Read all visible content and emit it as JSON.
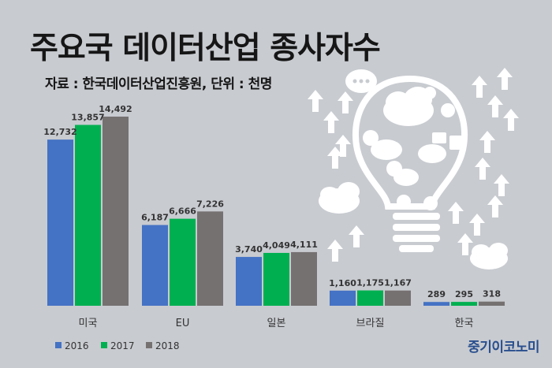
{
  "title": "주요국 데이터산업 종사자수",
  "subtitle": "자료 : 한국데이터산업진흥원, 단위 : 천명",
  "brand": "중기이코노미",
  "colors": {
    "background": "#c8cbd0",
    "s2016": "#4472c4",
    "s2017": "#00b050",
    "s2018": "#767171"
  },
  "chart_data": {
    "type": "bar",
    "title": "주요국 데이터산업 종사자수",
    "unit": "천명",
    "categories": [
      "미국",
      "EU",
      "일본",
      "브라질",
      "한국"
    ],
    "series": [
      {
        "name": "2016",
        "values": [
          12732,
          6187,
          3740,
          1160,
          289
        ]
      },
      {
        "name": "2017",
        "values": [
          13857,
          6666,
          4049,
          1175,
          295
        ]
      },
      {
        "name": "2018",
        "values": [
          14492,
          7226,
          4111,
          1167,
          318
        ]
      }
    ],
    "value_labels": [
      [
        "12,732",
        "6,187",
        "3,740",
        "1,160",
        "289"
      ],
      [
        "13,857",
        "6,666",
        "4,049",
        "1,175",
        "295"
      ],
      [
        "14,492",
        "7,226",
        "4,111",
        "1,167",
        "318"
      ]
    ],
    "ylim": [
      0,
      15000
    ],
    "legend_position": "bottom-left",
    "grid": false
  }
}
